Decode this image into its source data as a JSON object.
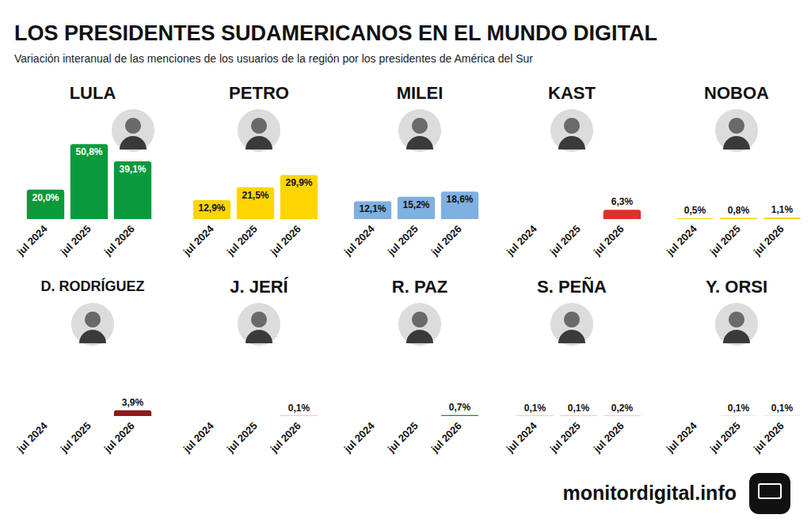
{
  "title": "LOS PRESIDENTES SUDAMERICANOS EN EL MUNDO DIGITAL",
  "subtitle": "Variación interanual de las menciones de los usuarios de la región por los presidentes de América del Sur",
  "source": "monitordigital.info",
  "chart_data": [
    {
      "type": "bar",
      "title": "LULA",
      "categories": [
        "jul 2024",
        "jul 2025",
        "jul 2026"
      ],
      "values": [
        20.0,
        50.8,
        39.1
      ],
      "value_labels": [
        "20,0%",
        "50,8%",
        "39,1%"
      ],
      "color": "#0a9a3c",
      "ylim": [
        0,
        60
      ],
      "data_labels": true,
      "tick_labels": "x",
      "grid": false
    },
    {
      "type": "bar",
      "title": "PETRO",
      "categories": [
        "jul 2024",
        "jul 2025",
        "jul 2026"
      ],
      "values": [
        12.9,
        21.5,
        29.9
      ],
      "value_labels": [
        "12,9%",
        "21,5%",
        "29,9%"
      ],
      "color": "#ffd500",
      "ylim": [
        0,
        60
      ],
      "data_labels": true,
      "tick_labels": "x",
      "grid": false
    },
    {
      "type": "bar",
      "title": "MILEI",
      "categories": [
        "jul 2024",
        "jul 2025",
        "jul 2026"
      ],
      "values": [
        12.1,
        15.2,
        18.6
      ],
      "value_labels": [
        "12,1%",
        "15,2%",
        "18,6%"
      ],
      "color": "#7eb0e2",
      "ylim": [
        0,
        60
      ],
      "data_labels": true,
      "tick_labels": "x",
      "grid": false
    },
    {
      "type": "bar",
      "title": "KAST",
      "categories": [
        "jul 2024",
        "jul 2025",
        "jul 2026"
      ],
      "values": [
        null,
        null,
        6.3
      ],
      "value_labels": [
        null,
        null,
        "6,3%"
      ],
      "color": "#e0302a",
      "ylim": [
        0,
        60
      ],
      "data_labels": true,
      "tick_labels": "x",
      "grid": false
    },
    {
      "type": "bar",
      "title": "NOBOA",
      "categories": [
        "jul 2024",
        "jul 2025",
        "jul 2026"
      ],
      "values": [
        0.5,
        0.8,
        1.1
      ],
      "value_labels": [
        "0,5%",
        "0,8%",
        "1,1%"
      ],
      "color": "#ffd500",
      "ylim": [
        0,
        60
      ],
      "data_labels": true,
      "tick_labels": "x",
      "grid": false
    },
    {
      "type": "bar",
      "title": "D. RODRÍGUEZ",
      "categories": [
        "jul 2024",
        "jul 2025",
        "jul 2026"
      ],
      "values": [
        null,
        null,
        3.9
      ],
      "value_labels": [
        null,
        null,
        "3,9%"
      ],
      "color": "#8b1a1a",
      "ylim": [
        0,
        60
      ],
      "data_labels": true,
      "tick_labels": "x",
      "grid": false
    },
    {
      "type": "bar",
      "title": "J. JERÍ",
      "categories": [
        "jul 2024",
        "jul 2025",
        "jul 2026"
      ],
      "values": [
        null,
        null,
        0.1
      ],
      "value_labels": [
        null,
        null,
        "0,1%"
      ],
      "color": "#c8102e",
      "ylim": [
        0,
        60
      ],
      "data_labels": true,
      "tick_labels": "x",
      "grid": false
    },
    {
      "type": "bar",
      "title": "R. PAZ",
      "categories": [
        "jul 2024",
        "jul 2025",
        "jul 2026"
      ],
      "values": [
        null,
        null,
        0.7
      ],
      "value_labels": [
        null,
        null,
        "0,7%"
      ],
      "color": "#1a8a3a",
      "ylim": [
        0,
        60
      ],
      "data_labels": true,
      "tick_labels": "x",
      "grid": false
    },
    {
      "type": "bar",
      "title": "S. PEÑA",
      "categories": [
        "jul 2024",
        "jul 2025",
        "jul 2026"
      ],
      "values": [
        0.1,
        0.1,
        0.2
      ],
      "value_labels": [
        "0,1%",
        "0,1%",
        "0,2%"
      ],
      "color": "#d52b1e",
      "ylim": [
        0,
        60
      ],
      "data_labels": true,
      "tick_labels": "x",
      "grid": false
    },
    {
      "type": "bar",
      "title": "Y. ORSI",
      "categories": [
        "jul 2024",
        "jul 2025",
        "jul 2026"
      ],
      "values": [
        null,
        0.1,
        0.1
      ],
      "value_labels": [
        null,
        "0,1%",
        "0,1%"
      ],
      "color": "#75aadb",
      "ylim": [
        0,
        60
      ],
      "data_labels": true,
      "tick_labels": "x",
      "grid": false
    }
  ]
}
